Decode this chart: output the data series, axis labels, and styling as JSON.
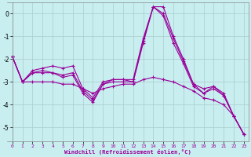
{
  "background_color": "#c8eef0",
  "plot_bg_color": "#c8eef0",
  "line_color": "#990099",
  "grid_color": "#aacccc",
  "xlabel": "Windchill (Refroidissement éolien,°C)",
  "xlim": [
    -0.5,
    23.5
  ],
  "ylim": [
    -5.6,
    0.5
  ],
  "yticks": [
    0,
    -1,
    -2,
    -3,
    -4,
    -5
  ],
  "xticks": [
    0,
    1,
    2,
    3,
    4,
    5,
    6,
    7,
    8,
    9,
    10,
    11,
    12,
    13,
    14,
    15,
    16,
    17,
    18,
    19,
    20,
    21,
    22,
    23
  ],
  "x": [
    0,
    1,
    2,
    3,
    4,
    5,
    6,
    7,
    8,
    9,
    10,
    11,
    12,
    13,
    14,
    15,
    16,
    17,
    18,
    19,
    20,
    21,
    22,
    23
  ],
  "series": [
    [
      -1.9,
      -3.0,
      -2.5,
      -2.4,
      -2.3,
      -2.4,
      -2.3,
      -3.3,
      -3.7,
      -3.0,
      -2.9,
      -2.9,
      -3.0,
      -1.2,
      0.3,
      0.3,
      -1.0,
      -2.0,
      -3.1,
      -3.3,
      -3.2,
      -3.6,
      -4.5,
      -5.3
    ],
    [
      -1.9,
      -3.0,
      -2.6,
      -2.5,
      -2.6,
      -2.7,
      -2.6,
      -3.4,
      -3.8,
      -3.1,
      -2.9,
      -2.9,
      -2.9,
      -1.1,
      0.3,
      0.0,
      -1.1,
      -2.1,
      -3.1,
      -3.5,
      -3.2,
      -3.5,
      -4.5,
      -5.3
    ],
    [
      -1.9,
      -3.0,
      -2.6,
      -2.6,
      -2.6,
      -2.8,
      -2.7,
      -3.5,
      -3.9,
      -3.1,
      -3.0,
      -3.0,
      -3.0,
      -1.3,
      0.3,
      -0.1,
      -1.3,
      -2.2,
      -3.2,
      -3.5,
      -3.3,
      -3.6,
      -4.5,
      -5.3
    ],
    [
      -1.9,
      -3.0,
      -3.0,
      -3.0,
      -3.0,
      -3.1,
      -3.1,
      -3.3,
      -3.5,
      -3.3,
      -3.2,
      -3.1,
      -3.1,
      -2.9,
      -2.8,
      -2.9,
      -3.0,
      -3.2,
      -3.4,
      -3.7,
      -3.8,
      -4.0,
      -4.5,
      -5.3
    ]
  ]
}
